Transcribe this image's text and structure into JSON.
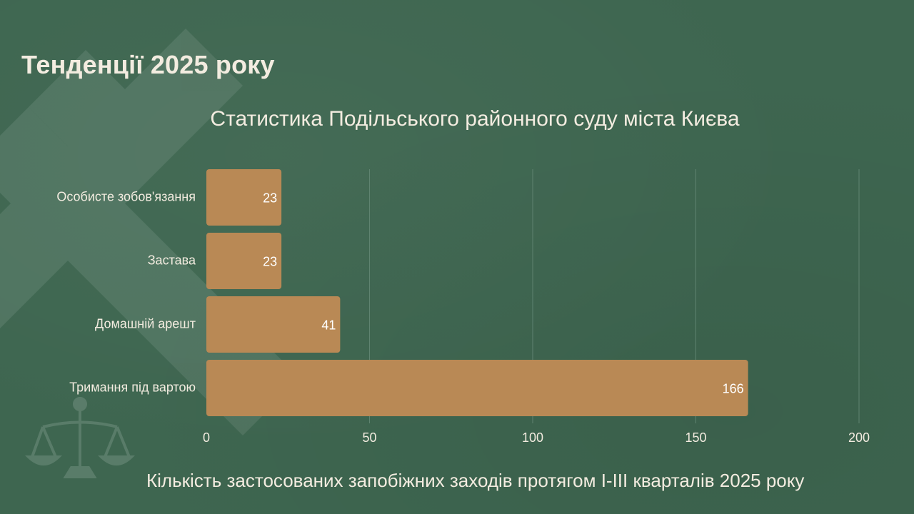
{
  "page": {
    "heading": "Тенденції 2025 року",
    "caption": "Кількість застосованих запобіжних заходів протягом I-III кварталів 2025 року"
  },
  "colors": {
    "background": "#3e6650",
    "bar": "#b98955",
    "text": "#f3ece0",
    "grid": "#5f8370"
  },
  "icons": [
    "crossed-bars-watermark-icon",
    "scales-of-justice-icon"
  ],
  "chart_data": {
    "type": "bar",
    "orientation": "horizontal",
    "title": "Статистика Подільського районного суду міста Києва",
    "xlabel": "",
    "ylabel": "",
    "categories": [
      "Особисте зобов'язання",
      "Застава",
      "Домашній арешт",
      "Тримання під вартою"
    ],
    "values": [
      23,
      23,
      41,
      166
    ],
    "xlim": [
      0,
      200
    ],
    "xticks": [
      0,
      50,
      100,
      150,
      200
    ],
    "grid": true,
    "legend": "none"
  }
}
